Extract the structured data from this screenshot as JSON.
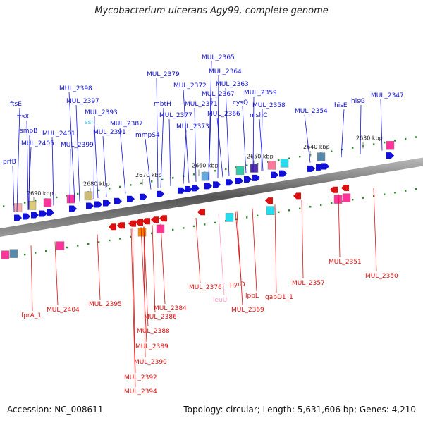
{
  "title": "Mycobacterium ulcerans Agy99, complete genome",
  "footer": {
    "accession": "Accession: NC_008611",
    "summary": "Topology: circular; Length: 5,631,606 bp; Genes: 4,210"
  },
  "colors": {
    "forward": "#1010d8",
    "reverse": "#dd1010",
    "pseudo": "#ff99cc",
    "backbone": "#777777",
    "tick": "#2a8a2a"
  },
  "ruler": [
    "2690 kbp",
    "2680 kbp",
    "2670 kbp",
    "2660 kbp",
    "2650 kbp",
    "2640 kbp",
    "2630 kbp"
  ],
  "forward_labels": [
    "MUL_2365",
    "MUL_2364",
    "MUL_2379",
    "MUL_2363",
    "MUL_2372",
    "MUL_2367",
    "MUL_2359",
    "MUL_2371",
    "cysQ",
    "MUL_2398",
    "mbtH",
    "MUL_2358",
    "MUL_2347",
    "MUL_2397",
    "MUL_2366",
    "ftsE",
    "MUL_2393",
    "MUL_2377",
    "mshC",
    "MUL_2354",
    "hisE",
    "hisG",
    "ftsX",
    "ssr",
    "MUL_2387",
    "MUL_2373",
    "smpB",
    "MUL_2401",
    "MUL_2391",
    "mmpS4",
    "MUL_2405",
    "MUL_2399",
    "prfB"
  ],
  "reverse_labels": [
    "MUL_2351",
    "MUL_2350",
    "MUL_2376",
    "pyrD",
    "MUL_2357",
    "MUL_2395",
    "lppL",
    "leuU",
    "gabD1_1",
    "MUL_2404",
    "MUL_2384",
    "MUL_2369",
    "fprA_1",
    "MUL_2386",
    "MUL_2388",
    "MUL_2389",
    "MUL_2390",
    "MUL_2392",
    "MUL_2394"
  ]
}
